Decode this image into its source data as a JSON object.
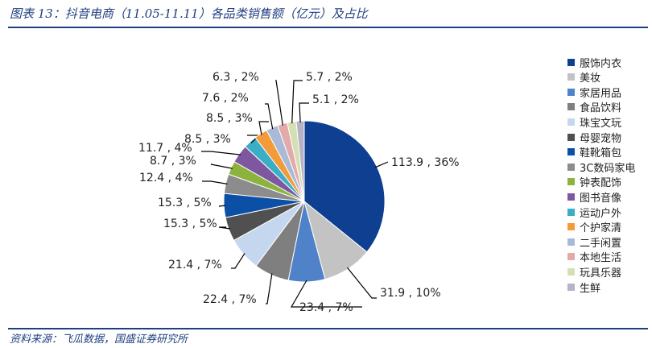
{
  "header": {
    "title": "图表 13：抖音电商（11.05-11.11）各品类销售额（亿元）及占比"
  },
  "footer": {
    "source": "资料来源：飞瓜数据，国盛证券研究所"
  },
  "colors": {
    "title_blue": "#1f3f7f"
  },
  "chart_data": {
    "type": "pie",
    "title": "",
    "legend_position": "right",
    "start_angle": "12 o'clock, clockwise",
    "slices": [
      {
        "name": "服饰内衣",
        "value": 113.9,
        "percent": "36%",
        "label": "113.9 , 36%",
        "color": "#0e3f91"
      },
      {
        "name": "美妆",
        "value": 31.9,
        "percent": "10%",
        "label": "31.9 , 10%",
        "color": "#c3c3c3"
      },
      {
        "name": "家居用品",
        "value": 23.4,
        "percent": "7%",
        "label": "23.4 , 7%",
        "color": "#4f82c9"
      },
      {
        "name": "食品饮料",
        "value": 22.4,
        "percent": "7%",
        "label": "22.4 , 7%",
        "color": "#7f7f7f"
      },
      {
        "name": "珠宝文玩",
        "value": 21.4,
        "percent": "7%",
        "label": "21.4 , 7%",
        "color": "#c5d7ee"
      },
      {
        "name": "母婴宠物",
        "value": 15.3,
        "percent": "5%",
        "label": "15.3 , 5%",
        "color": "#505050"
      },
      {
        "name": "鞋靴箱包",
        "value": 15.3,
        "percent": "5%",
        "label": "15.3 , 5%",
        "color": "#0b4fa6"
      },
      {
        "name": "3C数码家电",
        "value": 12.4,
        "percent": "4%",
        "label": "12.4 , 4%",
        "color": "#8c8c8c"
      },
      {
        "name": "钟表配饰",
        "value": 8.7,
        "percent": "3%",
        "label": "8.7 , 3%",
        "color": "#8db33f"
      },
      {
        "name": "图书音像",
        "value": 11.7,
        "percent": "4%",
        "label": "11.7 , 4%",
        "color": "#7e57a1"
      },
      {
        "name": "运动户外",
        "value": 8.5,
        "percent": "3%",
        "label": "8.5 , 3%",
        "color": "#39aec4"
      },
      {
        "name": "个护家清",
        "value": 8.5,
        "percent": "3%",
        "label": "8.5 , 3%",
        "color": "#f39a3a"
      },
      {
        "name": "二手闲置",
        "value": 7.6,
        "percent": "2%",
        "label": "7.6 , 2%",
        "color": "#a9bad8"
      },
      {
        "name": "本地生活",
        "value": 6.3,
        "percent": "2%",
        "label": "6.3 , 2%",
        "color": "#e2aaaa"
      },
      {
        "name": "玩具乐器",
        "value": 5.7,
        "percent": "2%",
        "label": "5.7 , 2%",
        "color": "#d4e0b4"
      },
      {
        "name": "生鲜",
        "value": 5.1,
        "percent": "2%",
        "label": "5.1 , 2%",
        "color": "#b8b2c8"
      }
    ]
  }
}
